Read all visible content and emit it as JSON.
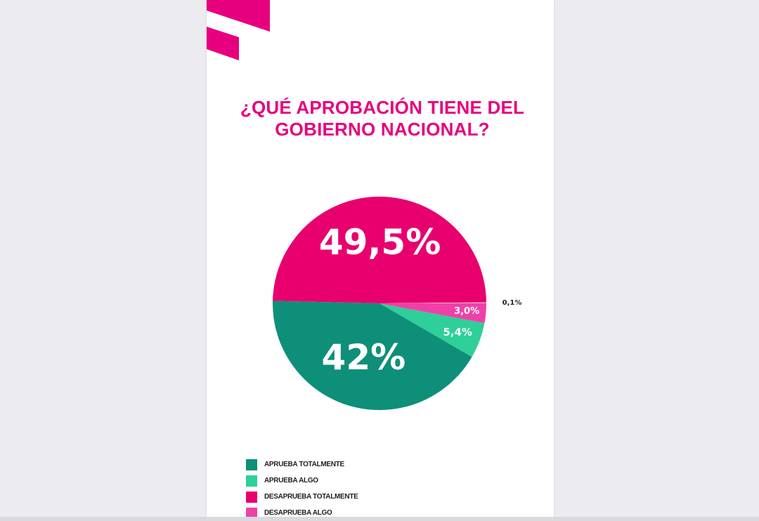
{
  "colors": {
    "accent": "#e6007e",
    "aprueba_totalmente": "#0e8f7a",
    "aprueba_algo": "#2ecf98",
    "desaprueba_totalmente": "#e8006f",
    "desaprueba_algo": "#f040a8"
  },
  "chart_data": {
    "type": "pie",
    "title": "¿QUÉ APROBACIÓN TIENE DEL GOBIERNO NACIONAL?",
    "slices": [
      {
        "label": "DESAPRUEBA TOTALMENTE",
        "value": 49.5,
        "display": "49,5%",
        "color": "#e8006f"
      },
      {
        "label": "APRUEBA TOTALMENTE",
        "value": 42,
        "display": "42%",
        "color": "#0e8f7a"
      },
      {
        "label": "APRUEBA ALGO",
        "value": 5.4,
        "display": "5,4%",
        "color": "#2ecf98"
      },
      {
        "label": "DESAPRUEBA ALGO",
        "value": 3.0,
        "display": "3,0%",
        "color": "#f040a8"
      },
      {
        "label": "",
        "value": 0.1,
        "display": "0,1%",
        "color": "#c9c9c9"
      }
    ],
    "legend": [
      "APRUEBA TOTALMENTE",
      "APRUEBA ALGO",
      "DESAPRUEBA TOTALMENTE",
      "DESAPRUEBA ALGO"
    ],
    "legend_placement": "bottom-left"
  }
}
